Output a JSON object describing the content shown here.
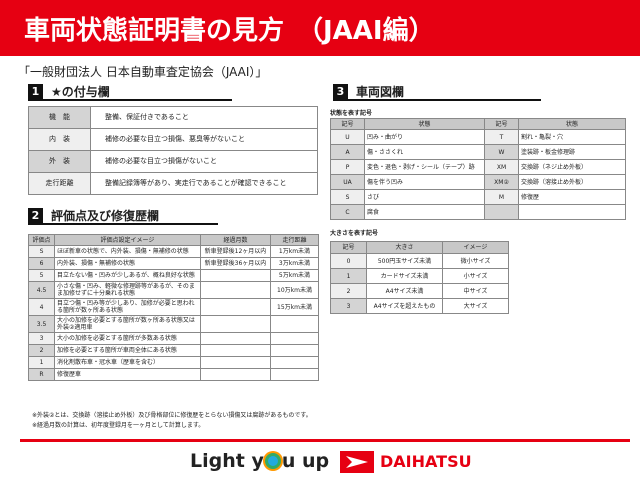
{
  "header": {
    "title": "車両状態証明書の見方　（JAAI編）",
    "subtitle": "「一般財団法人 日本自動車査定協会（JAAI）」"
  },
  "section1": {
    "num": "1",
    "title": "★の付与欄",
    "rows": [
      {
        "label": "機　能",
        "value": "整備、保証付きであること"
      },
      {
        "label": "内　装",
        "value": "補修の必要な目立つ損傷、悪臭等がないこと"
      },
      {
        "label": "外　装",
        "value": "補修の必要な目立つ損傷がないこと"
      },
      {
        "label": "走行距離",
        "value": "整備記録簿等があり、実走行であることが確認できること"
      }
    ]
  },
  "section2": {
    "num": "2",
    "title": "評価点及び修復歴欄",
    "headers": [
      "評価点",
      "評価点設定イメージ",
      "経過月数",
      "走行距離"
    ],
    "rows": [
      [
        "S",
        "ほぼ新車の状態で、内外装、損傷・無補修の状態",
        "新車登録後12ヶ月以内",
        "1万km未満"
      ],
      [
        "6",
        "内外装、損傷・無補修の状態",
        "新車登録後36ヶ月以内",
        "3万km未満"
      ],
      [
        "5",
        "目立たない傷・凹みが少しあるが、概ね良好な状態",
        "",
        "5万km未満"
      ],
      [
        "4.5",
        "小さな傷・凹み、軽微な修理跡等があるが、そのまま加修せずに十分乗れる状態",
        "",
        "10万km未満"
      ],
      [
        "4",
        "目立つ傷・凹み等が少しあり、加修が必要と思われる箇所が数ヶ所ある状態",
        "",
        "15万km未満"
      ],
      [
        "3.5",
        "大小の加修を必要とする箇所が数ヶ所ある状態又は外装②適用車",
        "",
        ""
      ],
      [
        "3",
        "大小の加修を必要とする箇所が多数ある状態",
        "",
        ""
      ],
      [
        "2",
        "加修を必要とする箇所が車両全体にある状態",
        "",
        ""
      ],
      [
        "1",
        "消化剤散布車・冠水車（歴車を含む）",
        "",
        ""
      ],
      [
        "R",
        "修復歴車",
        "",
        ""
      ]
    ]
  },
  "notes": [
    "※外装②とは、交換跡（溶接止め外板）及び骨格部位に修復歴をとらない損傷又は腐跡があるものです。",
    "※経過月数の計算は、初年度登録月を一ヶ月として計算します。"
  ],
  "section3": {
    "num": "3",
    "title": "車両図欄",
    "state_label": "状態を表す記号",
    "state_headers": [
      "記号",
      "状態",
      "記号",
      "状態"
    ],
    "state_rows": [
      [
        "U",
        "凹み・曲がり",
        "T",
        "割れ・亀裂・穴"
      ],
      [
        "A",
        "傷・ささくれ",
        "W",
        "塗装跡・板金修理跡"
      ],
      [
        "P",
        "変色・退色・剥げ・シール（テープ）跡",
        "XM",
        "交換跡（ネジ止め外板）"
      ],
      [
        "UA",
        "傷を伴う凹み",
        "XM②",
        "交換跡（溶接止め外板）"
      ],
      [
        "S",
        "さび",
        "M",
        "修復歴"
      ],
      [
        "C",
        "腐食",
        "",
        ""
      ]
    ],
    "size_label": "大きさを表す記号",
    "size_headers": [
      "記号",
      "大きさ",
      "イメージ"
    ],
    "size_rows": [
      [
        "0",
        "500円玉サイズ未満",
        "微小サイズ"
      ],
      [
        "1",
        "カードサイズ未満",
        "小サイズ"
      ],
      [
        "2",
        "A4サイズ未満",
        "中サイズ"
      ],
      [
        "3",
        "A4サイズを超えたもの",
        "大サイズ"
      ]
    ]
  },
  "footer": {
    "slogan_a": "Light y",
    "slogan_b": "u up",
    "brand": "DAIHATSU"
  },
  "colors": {
    "accent": "#e60012"
  }
}
